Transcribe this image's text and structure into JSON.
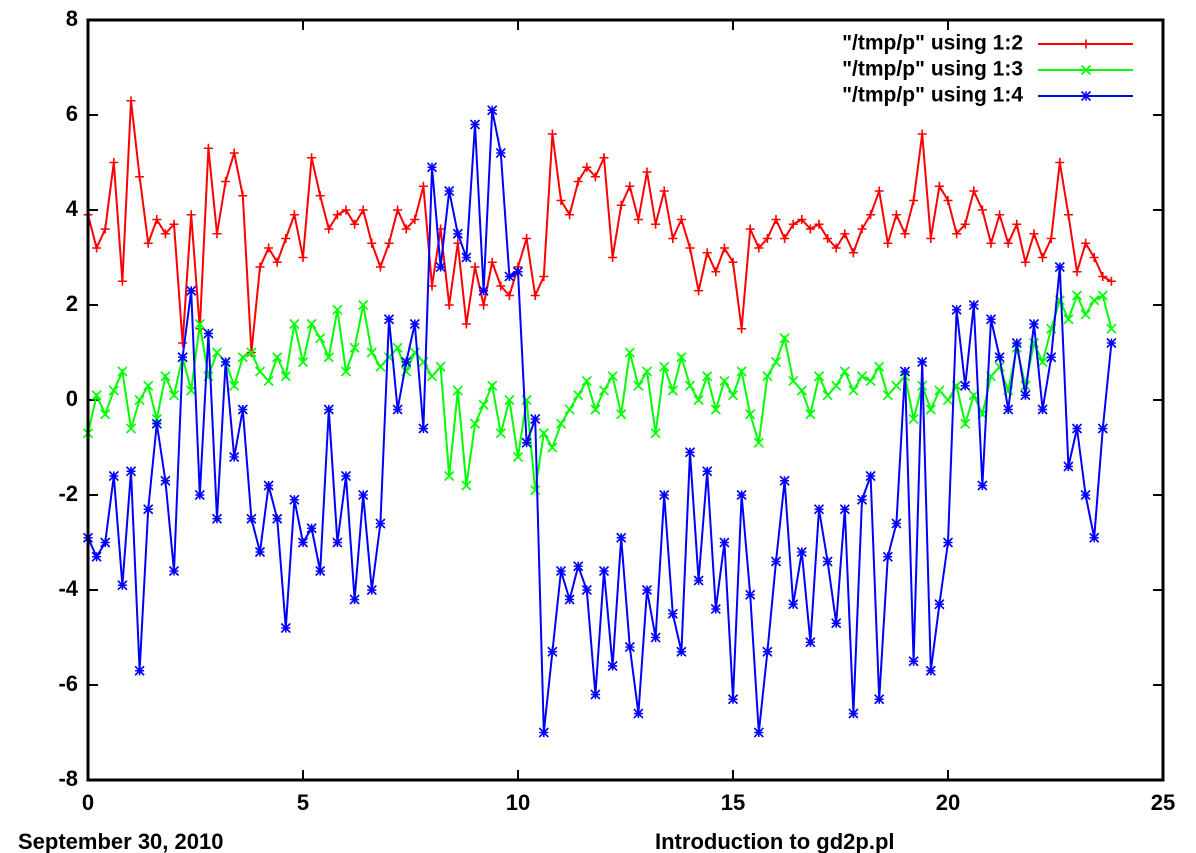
{
  "chart_data": {
    "type": "line",
    "xlim": [
      0,
      25
    ],
    "ylim": [
      -8,
      8
    ],
    "xticks": [
      0,
      5,
      10,
      15,
      20,
      25
    ],
    "yticks": [
      -8,
      -6,
      -4,
      -2,
      0,
      2,
      4,
      6,
      8
    ],
    "legend": "top-right",
    "x": [
      0,
      0.2,
      0.4,
      0.6,
      0.8,
      1,
      1.2,
      1.4,
      1.6,
      1.8,
      2,
      2.2,
      2.4,
      2.6,
      2.8,
      3,
      3.2,
      3.4,
      3.6,
      3.8,
      4,
      4.2,
      4.4,
      4.6,
      4.8,
      5,
      5.2,
      5.4,
      5.6,
      5.8,
      6,
      6.2,
      6.4,
      6.6,
      6.8,
      7,
      7.2,
      7.4,
      7.6,
      7.8,
      8,
      8.2,
      8.4,
      8.6,
      8.8,
      9,
      9.2,
      9.4,
      9.6,
      9.8,
      10,
      10.2,
      10.4,
      10.6,
      10.8,
      11,
      11.2,
      11.4,
      11.6,
      11.8,
      12,
      12.2,
      12.4,
      12.6,
      12.8,
      13,
      13.2,
      13.4,
      13.6,
      13.8,
      14,
      14.2,
      14.4,
      14.6,
      14.8,
      15,
      15.2,
      15.4,
      15.6,
      15.8,
      16,
      16.2,
      16.4,
      16.6,
      16.8,
      17,
      17.2,
      17.4,
      17.6,
      17.8,
      18,
      18.2,
      18.4,
      18.6,
      18.8,
      19,
      19.2,
      19.4,
      19.6,
      19.8,
      20,
      20.2,
      20.4,
      20.6,
      20.8,
      21,
      21.2,
      21.4,
      21.6,
      21.8,
      22,
      22.2,
      22.4,
      22.6,
      22.8,
      23,
      23.2,
      23.4,
      23.6,
      23.8
    ],
    "series": [
      {
        "name": "\"/tmp/p\" using 1:2",
        "color": "#ff0000",
        "marker": "plus",
        "values": [
          3.9,
          3.2,
          3.6,
          5.0,
          2.5,
          6.3,
          4.7,
          3.3,
          3.8,
          3.5,
          3.7,
          1.2,
          3.9,
          1.5,
          5.3,
          3.5,
          4.6,
          5.2,
          4.3,
          1.0,
          2.8,
          3.2,
          2.9,
          3.4,
          3.9,
          3.0,
          5.1,
          4.3,
          3.6,
          3.9,
          4.0,
          3.7,
          4.0,
          3.3,
          2.8,
          3.3,
          4.0,
          3.6,
          3.8,
          4.5,
          2.4,
          3.6,
          2.0,
          3.3,
          1.6,
          2.8,
          2.0,
          2.9,
          2.4,
          2.2,
          2.8,
          3.4,
          2.2,
          2.6,
          5.6,
          4.2,
          3.9,
          4.6,
          4.9,
          4.7,
          5.1,
          3.0,
          4.1,
          4.5,
          3.8,
          4.8,
          3.7,
          4.4,
          3.4,
          3.8,
          3.2,
          2.3,
          3.1,
          2.7,
          3.2,
          2.9,
          1.5,
          3.6,
          3.2,
          3.4,
          3.8,
          3.4,
          3.7,
          3.8,
          3.6,
          3.7,
          3.4,
          3.2,
          3.5,
          3.1,
          3.6,
          3.9,
          4.4,
          3.3,
          3.9,
          3.5,
          4.2,
          5.6,
          3.4,
          4.5,
          4.2,
          3.5,
          3.7,
          4.4,
          4.0,
          3.3,
          3.9,
          3.3,
          3.7,
          2.9,
          3.5,
          3.0,
          3.4,
          5.0,
          3.9,
          2.7,
          3.3,
          3.0,
          2.6,
          2.5
        ]
      },
      {
        "name": "\"/tmp/p\" using 1:3",
        "color": "#00ff00",
        "marker": "cross",
        "values": [
          -0.7,
          0.1,
          -0.3,
          0.2,
          0.6,
          -0.6,
          0.0,
          0.3,
          -0.4,
          0.5,
          0.1,
          0.9,
          0.2,
          1.6,
          0.5,
          1.0,
          0.8,
          0.3,
          0.9,
          1.0,
          0.6,
          0.4,
          0.9,
          0.5,
          1.6,
          0.8,
          1.6,
          1.3,
          0.9,
          1.9,
          0.6,
          1.1,
          2.0,
          1.0,
          0.7,
          0.9,
          1.1,
          0.6,
          1.0,
          0.8,
          0.5,
          0.7,
          -1.6,
          0.2,
          -1.8,
          -0.5,
          -0.1,
          0.3,
          -0.7,
          0.0,
          -1.2,
          0.0,
          -1.9,
          -0.7,
          -1.0,
          -0.5,
          -0.2,
          0.1,
          0.4,
          -0.2,
          0.2,
          0.5,
          -0.3,
          1.0,
          0.3,
          0.6,
          -0.7,
          0.7,
          0.2,
          0.9,
          0.3,
          0.0,
          0.5,
          -0.2,
          0.4,
          0.1,
          0.6,
          -0.3,
          -0.9,
          0.5,
          0.8,
          1.3,
          0.4,
          0.2,
          -0.3,
          0.5,
          0.1,
          0.3,
          0.6,
          0.2,
          0.5,
          0.4,
          0.7,
          0.1,
          0.3,
          0.5,
          -0.4,
          0.3,
          -0.2,
          0.2,
          0.0,
          0.3,
          -0.5,
          0.1,
          -0.3,
          0.5,
          0.7,
          0.2,
          1.1,
          0.3,
          1.2,
          0.8,
          1.5,
          2.1,
          1.7,
          2.2,
          1.8,
          2.1,
          2.2,
          1.5
        ]
      },
      {
        "name": "\"/tmp/p\" using 1:4",
        "color": "#0000ff",
        "marker": "star",
        "values": [
          -2.9,
          -3.3,
          -3.0,
          -1.6,
          -3.9,
          -1.5,
          -5.7,
          -2.3,
          -0.5,
          -1.7,
          -3.6,
          0.9,
          2.3,
          -2.0,
          1.4,
          -2.5,
          0.8,
          -1.2,
          -0.2,
          -2.5,
          -3.2,
          -1.8,
          -2.5,
          -4.8,
          -2.1,
          -3.0,
          -2.7,
          -3.6,
          -0.2,
          -3.0,
          -1.6,
          -4.2,
          -2.0,
          -4.0,
          -2.6,
          1.7,
          -0.2,
          0.8,
          1.6,
          -0.6,
          4.9,
          2.8,
          4.4,
          3.5,
          3.0,
          5.8,
          2.3,
          6.1,
          5.2,
          2.6,
          2.7,
          -0.9,
          -0.4,
          -7.0,
          -5.3,
          -3.6,
          -4.2,
          -3.5,
          -4.0,
          -6.2,
          -3.6,
          -5.6,
          -2.9,
          -5.2,
          -6.6,
          -4.0,
          -5.0,
          -2.0,
          -4.5,
          -5.3,
          -1.1,
          -3.8,
          -1.5,
          -4.4,
          -3.0,
          -6.3,
          -2.0,
          -4.1,
          -7.0,
          -5.3,
          -3.4,
          -1.7,
          -4.3,
          -3.2,
          -5.1,
          -2.3,
          -3.4,
          -4.7,
          -2.3,
          -6.6,
          -2.1,
          -1.6,
          -6.3,
          -3.3,
          -2.6,
          0.6,
          -5.5,
          0.8,
          -5.7,
          -4.3,
          -3.0,
          1.9,
          0.3,
          2.0,
          -1.8,
          1.7,
          0.9,
          -0.2,
          1.2,
          0.1,
          1.6,
          -0.2,
          0.9,
          2.8,
          -1.4,
          -0.6,
          -2.0,
          -2.9,
          -0.6,
          1.2
        ]
      }
    ]
  },
  "footer": {
    "left": "September 30, 2010",
    "right": "Introduction to gd2p.pl"
  }
}
